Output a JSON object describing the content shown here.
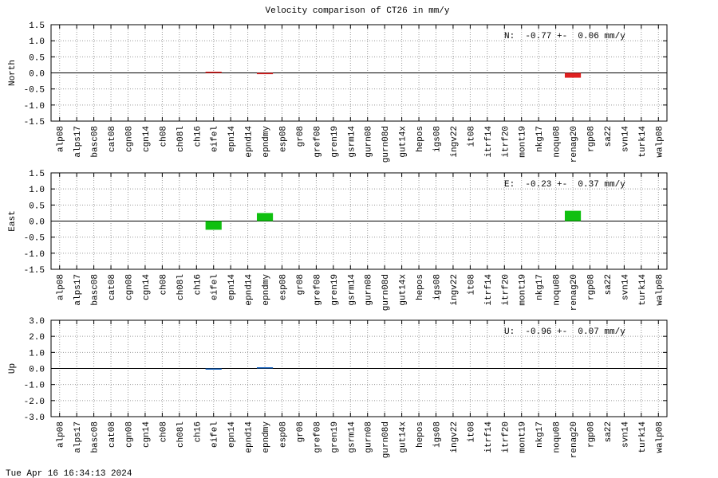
{
  "title": "Velocity comparison of CT26 in mm/y",
  "footer": "Tue Apr 16 16:34:13 2024",
  "chart_data": [
    {
      "type": "bar",
      "ylabel": "North",
      "annotation": "N:  -0.77 +-  0.06 mm/y",
      "color": "#e02020",
      "grid": true,
      "categories": [
        "alp08",
        "alps17",
        "basc08",
        "cat08",
        "cgn08",
        "cgn14",
        "ch08",
        "ch08l",
        "ch16",
        "eifel",
        "epn14",
        "epnd14",
        "epndmy",
        "esp08",
        "gr08",
        "gref08",
        "gren19",
        "gsrm14",
        "gurn08",
        "gurn08d",
        "gut14x",
        "hepos",
        "igs08",
        "ingv22",
        "it08",
        "itrf14",
        "itrf20",
        "mont19",
        "nkg17",
        "noqu08",
        "renag20",
        "rgp08",
        "sa22",
        "svn14",
        "turk14",
        "walp08"
      ],
      "values": [
        null,
        null,
        null,
        null,
        null,
        null,
        null,
        null,
        null,
        0.01,
        null,
        null,
        -0.04,
        null,
        null,
        null,
        null,
        null,
        null,
        null,
        null,
        null,
        null,
        null,
        null,
        null,
        null,
        null,
        null,
        null,
        -0.15,
        null,
        null,
        null,
        null,
        null
      ],
      "ylim": [
        -1.5,
        1.5
      ],
      "yticks": [
        1.5,
        {
          "value": 1,
          "label": "1.0"
        },
        0.5,
        {
          "value": 0,
          "label": "0.0"
        },
        -0.5,
        {
          "value": -1,
          "label": "-1.0"
        },
        -1.5
      ]
    },
    {
      "type": "bar",
      "ylabel": "East",
      "annotation": "E:  -0.23 +-  0.37 mm/y",
      "color": "#10c010",
      "grid": true,
      "categories": [
        "alp08",
        "alps17",
        "basc08",
        "cat08",
        "cgn08",
        "cgn14",
        "ch08",
        "ch08l",
        "ch16",
        "eifel",
        "epn14",
        "epnd14",
        "epndmy",
        "esp08",
        "gr08",
        "gref08",
        "gren19",
        "gsrm14",
        "gurn08",
        "gurn08d",
        "gut14x",
        "hepos",
        "igs08",
        "ingv22",
        "it08",
        "itrf14",
        "itrf20",
        "mont19",
        "nkg17",
        "noqu08",
        "renag20",
        "rgp08",
        "sa22",
        "svn14",
        "turk14",
        "walp08"
      ],
      "values": [
        null,
        null,
        null,
        null,
        null,
        null,
        null,
        null,
        null,
        -0.27,
        null,
        null,
        0.25,
        null,
        null,
        null,
        null,
        null,
        null,
        null,
        null,
        null,
        null,
        null,
        null,
        null,
        null,
        null,
        null,
        null,
        0.32,
        null,
        null,
        null,
        null,
        null
      ],
      "ylim": [
        -1.5,
        1.5
      ],
      "yticks": [
        1.5,
        {
          "value": 1,
          "label": "1.0"
        },
        0.5,
        {
          "value": 0,
          "label": "0.0"
        },
        -0.5,
        {
          "value": -1,
          "label": "-1.0"
        },
        -1.5
      ]
    },
    {
      "type": "bar",
      "ylabel": "Up",
      "annotation": "U:  -0.96 +-  0.07 mm/y",
      "color": "#1060c0",
      "grid": true,
      "categories": [
        "alp08",
        "alps17",
        "basc08",
        "cat08",
        "cgn08",
        "cgn14",
        "ch08",
        "ch08l",
        "ch16",
        "eifel",
        "epn14",
        "epnd14",
        "epndmy",
        "esp08",
        "gr08",
        "gref08",
        "gren19",
        "gsrm14",
        "gurn08",
        "gurn08d",
        "gut14x",
        "hepos",
        "igs08",
        "ingv22",
        "it08",
        "itrf14",
        "itrf20",
        "mont19",
        "nkg17",
        "noqu08",
        "renag20",
        "rgp08",
        "sa22",
        "svn14",
        "turk14",
        "walp08"
      ],
      "values": [
        null,
        null,
        null,
        null,
        null,
        null,
        null,
        null,
        null,
        -0.05,
        null,
        null,
        0.03,
        null,
        null,
        null,
        null,
        null,
        null,
        null,
        null,
        null,
        null,
        null,
        null,
        null,
        null,
        null,
        null,
        null,
        null,
        null,
        null,
        null,
        null,
        null
      ],
      "ylim": [
        -3,
        3
      ],
      "yticks": [
        {
          "value": 3,
          "label": "3.0"
        },
        {
          "value": 2,
          "label": "2.0"
        },
        {
          "value": 1,
          "label": "1.0"
        },
        {
          "value": 0,
          "label": "0.0"
        },
        {
          "value": -1,
          "label": "-1.0"
        },
        {
          "value": -2,
          "label": "-2.0"
        },
        {
          "value": -3,
          "label": "-3.0"
        }
      ]
    }
  ]
}
